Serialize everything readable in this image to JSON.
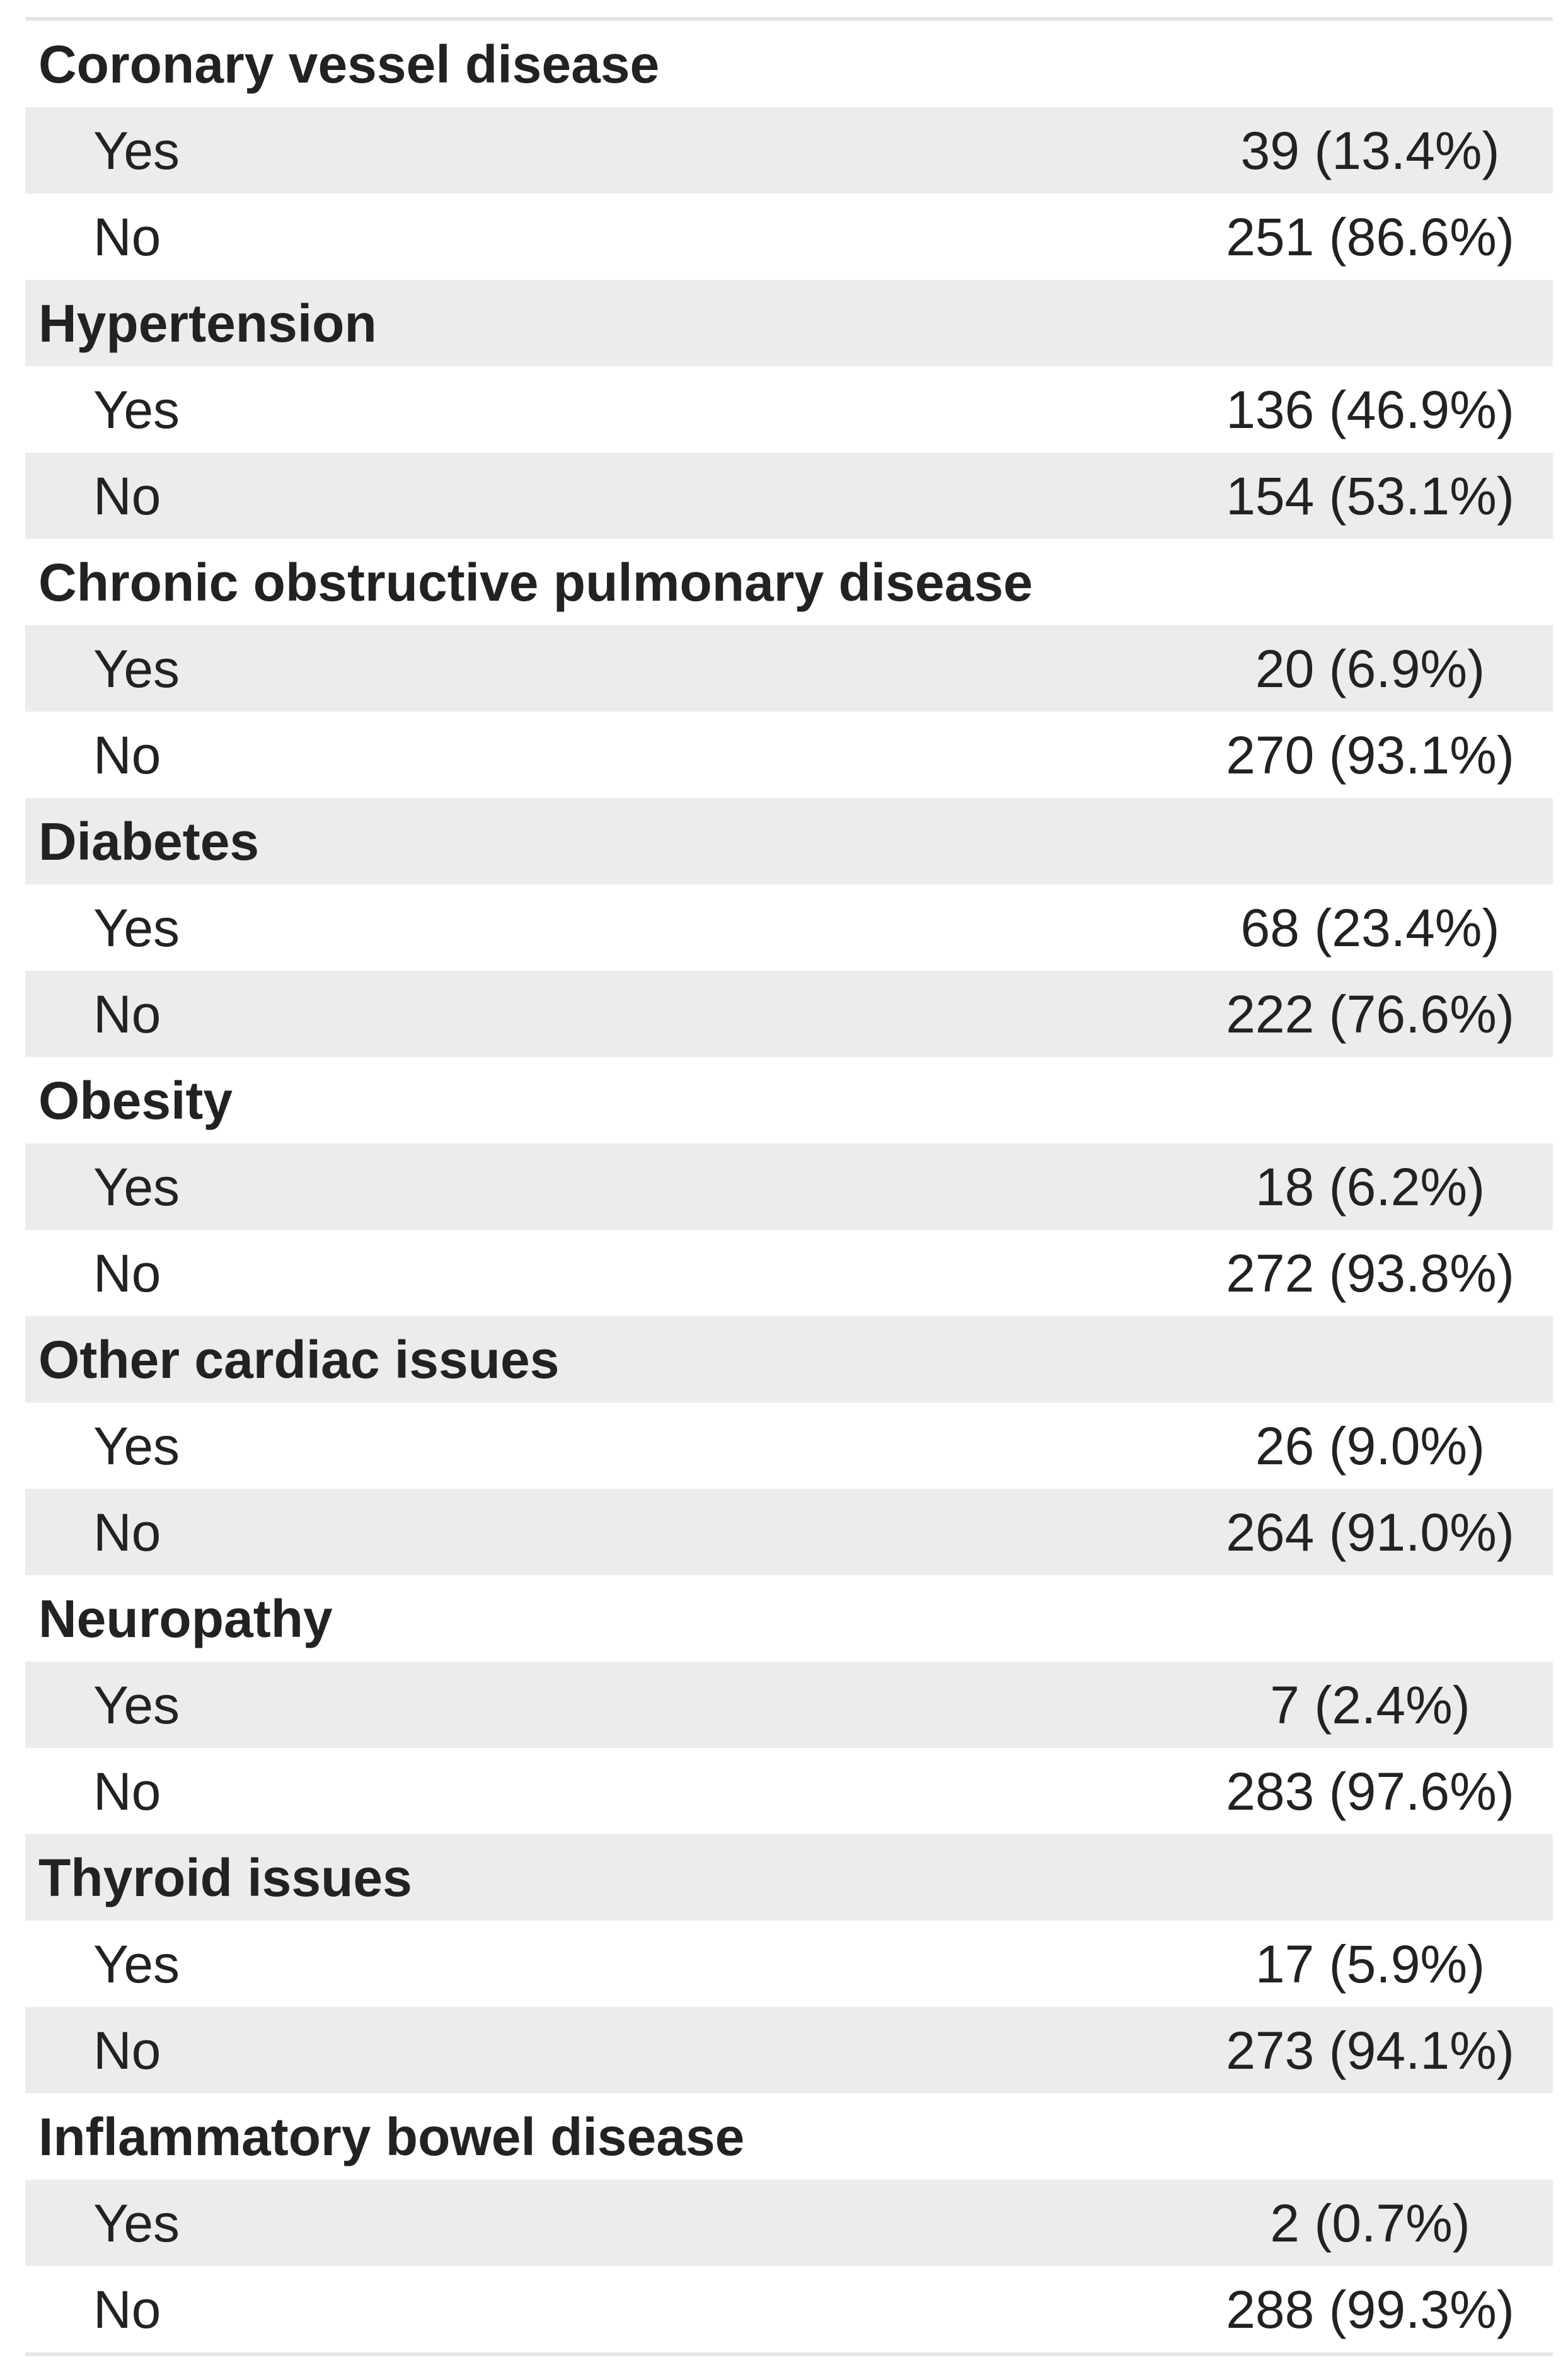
{
  "comorbidity_table": {
    "value_format": "n (%)",
    "sections": [
      {
        "header": "Coronary vessel disease",
        "rows": [
          {
            "label": "Yes",
            "value": "39 (13.4%)"
          },
          {
            "label": "No",
            "value": "251 (86.6%)"
          }
        ]
      },
      {
        "header": "Hypertension",
        "rows": [
          {
            "label": "Yes",
            "value": "136 (46.9%)"
          },
          {
            "label": "No",
            "value": "154 (53.1%)"
          }
        ]
      },
      {
        "header": "Chronic obstructive pulmonary disease",
        "rows": [
          {
            "label": "Yes",
            "value": "20 (6.9%)"
          },
          {
            "label": "No",
            "value": "270 (93.1%)"
          }
        ]
      },
      {
        "header": "Diabetes",
        "rows": [
          {
            "label": "Yes",
            "value": "68 (23.4%)"
          },
          {
            "label": "No",
            "value": "222 (76.6%)"
          }
        ]
      },
      {
        "header": "Obesity",
        "rows": [
          {
            "label": "Yes",
            "value": "18 (6.2%)"
          },
          {
            "label": "No",
            "value": "272 (93.8%)"
          }
        ]
      },
      {
        "header": "Other cardiac issues",
        "rows": [
          {
            "label": "Yes",
            "value": "26 (9.0%)"
          },
          {
            "label": "No",
            "value": "264 (91.0%)"
          }
        ]
      },
      {
        "header": "Neuropathy",
        "rows": [
          {
            "label": "Yes",
            "value": "7 (2.4%)"
          },
          {
            "label": "No",
            "value": "283 (97.6%)"
          }
        ]
      },
      {
        "header": "Thyroid issues",
        "rows": [
          {
            "label": "Yes",
            "value": "17 (5.9%)"
          },
          {
            "label": "No",
            "value": "273 (94.1%)"
          }
        ]
      },
      {
        "header": "Inflammatory bowel disease",
        "rows": [
          {
            "label": "Yes",
            "value": "2 (0.7%)"
          },
          {
            "label": "No",
            "value": "288 (99.3%)"
          }
        ]
      }
    ]
  },
  "colors": {
    "stripe_bg": "#ececec",
    "row_bg": "#ffffff",
    "border_line": "#e4e4e4",
    "text": "#222222"
  }
}
